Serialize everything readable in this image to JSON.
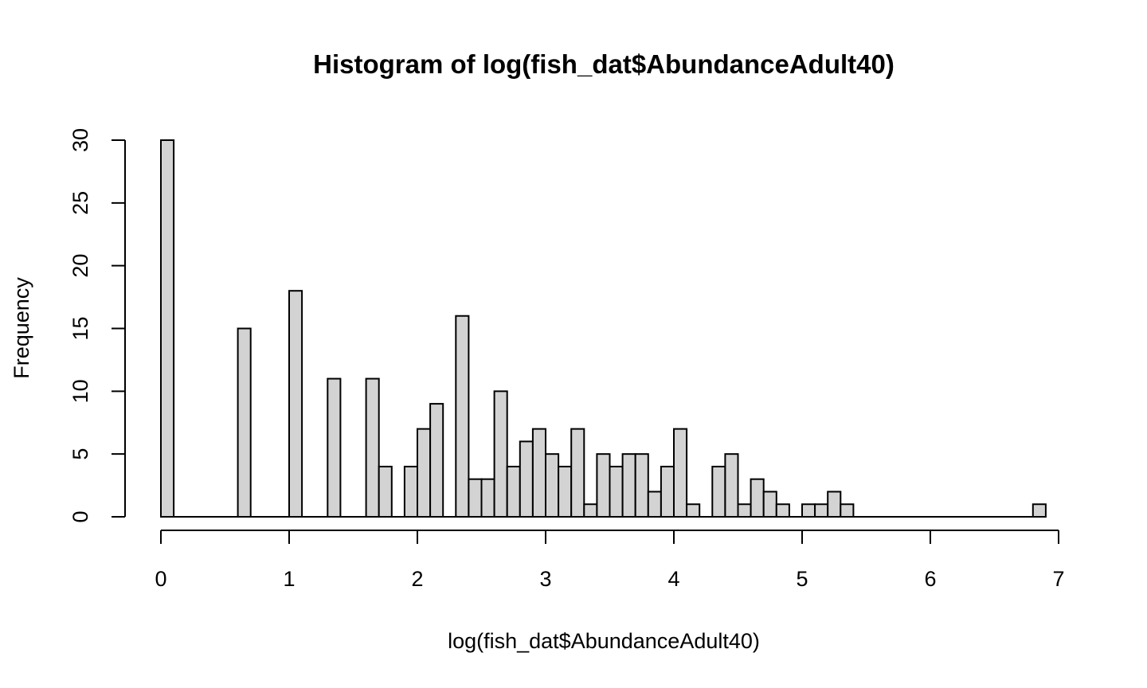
{
  "chart_data": {
    "type": "bar",
    "title": "Histogram of log(fish_dat$AbundanceAdult40)",
    "xlabel": "log(fish_dat$AbundanceAdult40)",
    "ylabel": "Frequency",
    "bin_width": 0.1,
    "bin_start": 0,
    "xlim": [
      0,
      7
    ],
    "ylim": [
      0,
      30
    ],
    "xticks": [
      0,
      1,
      2,
      3,
      4,
      5,
      6,
      7
    ],
    "yticks": [
      0,
      5,
      10,
      15,
      20,
      25,
      30
    ],
    "grid": false,
    "bar_color": "#d3d3d3",
    "values": [
      30,
      0,
      0,
      0,
      0,
      0,
      15,
      0,
      0,
      0,
      18,
      0,
      0,
      11,
      0,
      0,
      11,
      4,
      0,
      4,
      7,
      9,
      0,
      16,
      3,
      3,
      10,
      4,
      6,
      7,
      5,
      4,
      7,
      1,
      5,
      4,
      5,
      5,
      2,
      4,
      7,
      1,
      0,
      4,
      5,
      1,
      3,
      2,
      1,
      0,
      1,
      1,
      2,
      1,
      0,
      0,
      0,
      0,
      0,
      0,
      0,
      0,
      0,
      0,
      0,
      0,
      0,
      0,
      1
    ]
  }
}
